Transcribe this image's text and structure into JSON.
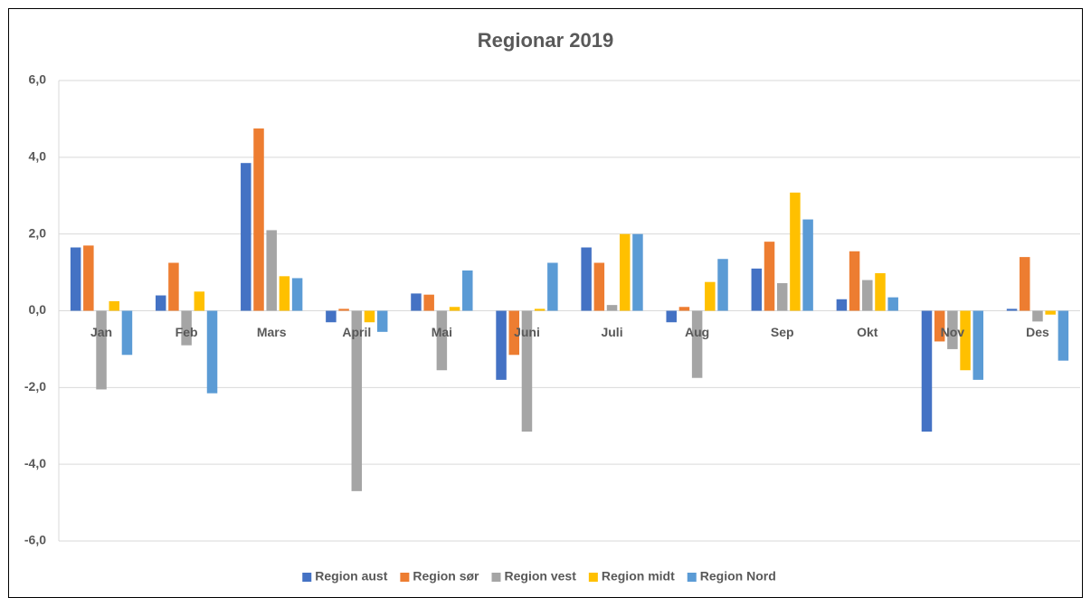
{
  "chart_data": {
    "type": "bar",
    "title": "Regionar 2019",
    "categories": [
      "Jan",
      "Feb",
      "Mars",
      "April",
      "Mai",
      "Juni",
      "Juli",
      "Aug",
      "Sep",
      "Okt",
      "Nov",
      "Des"
    ],
    "series": [
      {
        "name": "Region aust",
        "color": "#4472c4",
        "values": [
          1.65,
          0.4,
          3.85,
          -0.3,
          0.45,
          -1.8,
          1.65,
          -0.3,
          1.1,
          0.3,
          -3.15,
          0.05
        ]
      },
      {
        "name": "Region sør",
        "color": "#ed7d31",
        "values": [
          1.7,
          1.25,
          4.75,
          0.05,
          0.42,
          -1.15,
          1.25,
          0.1,
          1.8,
          1.55,
          -0.8,
          1.4
        ]
      },
      {
        "name": "Region vest",
        "color": "#a5a5a5",
        "values": [
          -2.05,
          -0.9,
          2.1,
          -4.7,
          -1.55,
          -3.15,
          0.15,
          -1.75,
          0.72,
          0.8,
          -1.0,
          -0.28
        ]
      },
      {
        "name": "Region midt",
        "color": "#ffc000",
        "values": [
          0.25,
          0.5,
          0.9,
          -0.3,
          0.1,
          0.05,
          2.0,
          0.75,
          3.08,
          0.98,
          -1.55,
          -0.1
        ]
      },
      {
        "name": "Region Nord",
        "color": "#5b9bd5",
        "values": [
          -1.15,
          -2.15,
          0.85,
          -0.55,
          1.05,
          1.25,
          2.0,
          1.35,
          2.38,
          0.35,
          -1.8,
          -1.3
        ]
      }
    ],
    "ylim": [
      -6,
      6
    ],
    "yticks": [
      {
        "value": -6,
        "label": "-6,0"
      },
      {
        "value": -4,
        "label": "-4,0"
      },
      {
        "value": -2,
        "label": "-2,0"
      },
      {
        "value": 0,
        "label": "0,0"
      },
      {
        "value": 2,
        "label": "2,0"
      },
      {
        "value": 4,
        "label": "4,0"
      },
      {
        "value": 6,
        "label": "6,0"
      }
    ],
    "grid": true,
    "legend": "bottom"
  }
}
